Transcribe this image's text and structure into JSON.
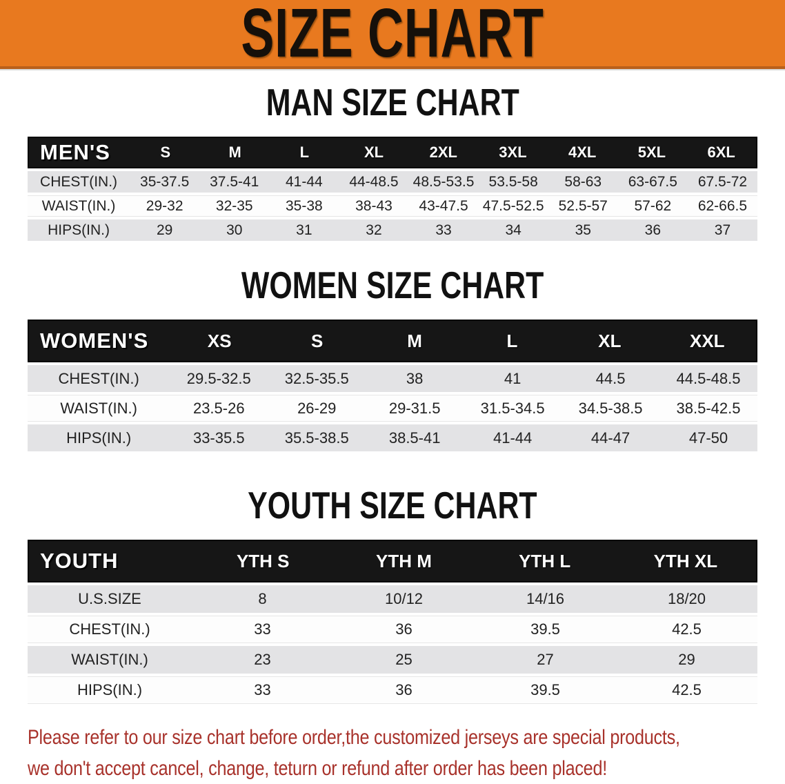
{
  "banner": {
    "title": "SIZE CHART",
    "bg_color": "#E8791F",
    "text_color": "#16100a"
  },
  "colors": {
    "table_header_bg": "#161616",
    "table_header_text": "#ffffff",
    "row_stripe": "#E3E3E5",
    "disclaimer_text": "#A8322B"
  },
  "chart_data": [
    {
      "type": "table",
      "title": "MAN SIZE CHART",
      "header_label": "MEN'S",
      "columns": [
        "S",
        "M",
        "L",
        "XL",
        "2XL",
        "3XL",
        "4XL",
        "5XL",
        "6XL"
      ],
      "rows": [
        {
          "label": "CHEST(IN.)",
          "values": [
            "35-37.5",
            "37.5-41",
            "41-44",
            "44-48.5",
            "48.5-53.5",
            "53.5-58",
            "58-63",
            "63-67.5",
            "67.5-72"
          ]
        },
        {
          "label": "WAIST(IN.)",
          "values": [
            "29-32",
            "32-35",
            "35-38",
            "38-43",
            "43-47.5",
            "47.5-52.5",
            "52.5-57",
            "57-62",
            "62-66.5"
          ]
        },
        {
          "label": "HIPS(IN.)",
          "values": [
            "29",
            "30",
            "31",
            "32",
            "33",
            "34",
            "35",
            "36",
            "37"
          ]
        }
      ]
    },
    {
      "type": "table",
      "title": "WOMEN SIZE CHART",
      "header_label": "WOMEN'S",
      "columns": [
        "XS",
        "S",
        "M",
        "L",
        "XL",
        "XXL"
      ],
      "rows": [
        {
          "label": "CHEST(IN.)",
          "values": [
            "29.5-32.5",
            "32.5-35.5",
            "38",
            "41",
            "44.5",
            "44.5-48.5"
          ]
        },
        {
          "label": "WAIST(IN.)",
          "values": [
            "23.5-26",
            "26-29",
            "29-31.5",
            "31.5-34.5",
            "34.5-38.5",
            "38.5-42.5"
          ]
        },
        {
          "label": "HIPS(IN.)",
          "values": [
            "33-35.5",
            "35.5-38.5",
            "38.5-41",
            "41-44",
            "44-47",
            "47-50"
          ]
        }
      ]
    },
    {
      "type": "table",
      "title": "YOUTH SIZE CHART",
      "header_label": "YOUTH",
      "columns": [
        "YTH S",
        "YTH M",
        "YTH L",
        "YTH XL"
      ],
      "rows": [
        {
          "label": "U.S.SIZE",
          "values": [
            "8",
            "10/12",
            "14/16",
            "18/20"
          ]
        },
        {
          "label": "CHEST(IN.)",
          "values": [
            "33",
            "36",
            "39.5",
            "42.5"
          ]
        },
        {
          "label": "WAIST(IN.)",
          "values": [
            "23",
            "25",
            "27",
            "29"
          ]
        },
        {
          "label": "HIPS(IN.)",
          "values": [
            "33",
            "36",
            "39.5",
            "42.5"
          ]
        }
      ]
    }
  ],
  "disclaimer": {
    "line1": "Please refer to our size chart before order,the customized jerseys are special products,",
    "line2": "we don't accept cancel, change, teturn or refund after order has been placed!"
  }
}
